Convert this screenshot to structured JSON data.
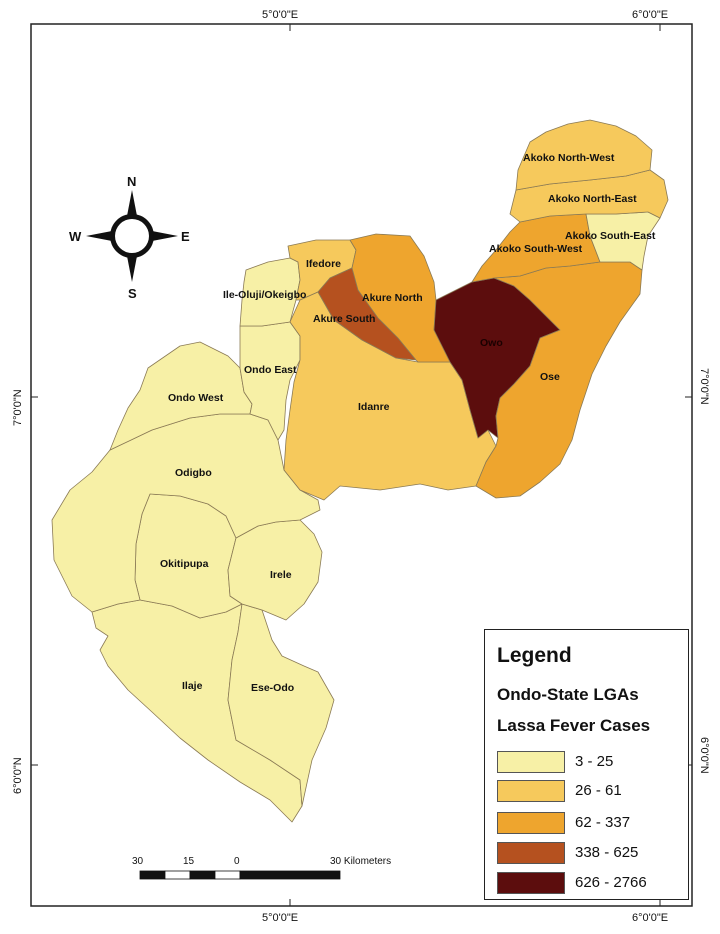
{
  "map": {
    "graticule": {
      "top_labels": [
        "5°0'0\"E",
        "6°0'0\"E"
      ],
      "bottom_labels": [
        "5°0'0\"E",
        "6°0'0\"E"
      ],
      "left_labels": [
        "7°0'0\"N",
        "6°0'0\"N"
      ],
      "right_labels": [
        "7°0'0\"N",
        "6°0'0\"N"
      ]
    },
    "lgas": [
      {
        "id": "akoko-north-west",
        "name": "Akoko North-West",
        "cases_class": "26 - 61"
      },
      {
        "id": "akoko-north-east",
        "name": "Akoko North-East",
        "cases_class": "26 - 61"
      },
      {
        "id": "akoko-south-east",
        "name": "Akoko South-East",
        "cases_class": "3 - 25"
      },
      {
        "id": "akoko-south-west",
        "name": "Akoko South-West",
        "cases_class": "62 - 337"
      },
      {
        "id": "ifedore",
        "name": "Ifedore",
        "cases_class": "26 - 61"
      },
      {
        "id": "akure-north",
        "name": "Akure North",
        "cases_class": "62 - 337"
      },
      {
        "id": "akure-south",
        "name": "Akure South",
        "cases_class": "338 - 625"
      },
      {
        "id": "owo",
        "name": "Owo",
        "cases_class": "626 - 2766"
      },
      {
        "id": "ose",
        "name": "Ose",
        "cases_class": "62 - 337"
      },
      {
        "id": "idanre",
        "name": "Idanre",
        "cases_class": "26 - 61"
      },
      {
        "id": "ile-oluji-okeigbo",
        "name": "Ile-Oluji/Okeigbo",
        "cases_class": "3 - 25"
      },
      {
        "id": "ondo-east",
        "name": "Ondo East",
        "cases_class": "3 - 25"
      },
      {
        "id": "ondo-west",
        "name": "Ondo West",
        "cases_class": "3 - 25"
      },
      {
        "id": "odigbo",
        "name": "Odigbo",
        "cases_class": "3 - 25"
      },
      {
        "id": "okitipupa",
        "name": "Okitipupa",
        "cases_class": "3 - 25"
      },
      {
        "id": "irele",
        "name": "Irele",
        "cases_class": "3 - 25"
      },
      {
        "id": "ilaje",
        "name": "Ilaje",
        "cases_class": "3 - 25"
      },
      {
        "id": "ese-odo",
        "name": "Ese-Odo",
        "cases_class": "3 - 25"
      }
    ],
    "compass": {
      "n": "N",
      "s": "S",
      "e": "E",
      "w": "W"
    },
    "scale_bar": {
      "labels": [
        "30",
        "15",
        "0",
        "30 Kilometers"
      ]
    }
  },
  "legend": {
    "title": "Legend",
    "subtitle": "Ondo-State LGAs",
    "field": "Lassa Fever Cases",
    "classes": [
      {
        "label": "3 - 25",
        "color": "#f7f0a6"
      },
      {
        "label": "26 - 61",
        "color": "#f6c95c"
      },
      {
        "label": "62 - 337",
        "color": "#eea52e"
      },
      {
        "label": "338 - 625",
        "color": "#b5511f"
      },
      {
        "label": "626 - 2766",
        "color": "#5c0d0d"
      }
    ]
  }
}
